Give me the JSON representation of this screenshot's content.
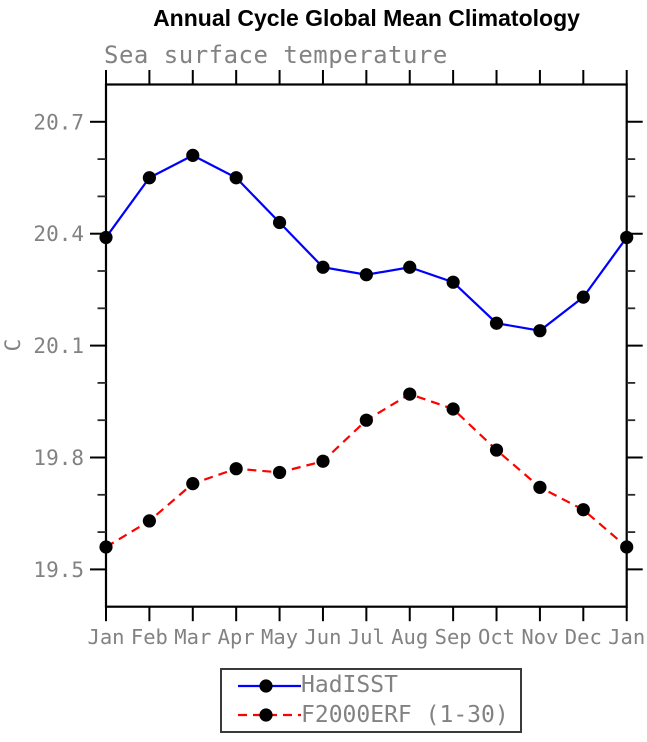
{
  "chart_data": {
    "type": "line",
    "title": "Annual Cycle Global Mean Climatology",
    "subtitle": "Sea surface temperature",
    "ylabel": "C",
    "xlabel": "",
    "categories": [
      "Jan",
      "Feb",
      "Mar",
      "Apr",
      "May",
      "Jun",
      "Jul",
      "Aug",
      "Sep",
      "Oct",
      "Nov",
      "Dec",
      "Jan"
    ],
    "series": [
      {
        "name": "HadISST",
        "color": "#0000ff",
        "line_style": "solid",
        "values": [
          20.39,
          20.55,
          20.61,
          20.55,
          20.43,
          20.31,
          20.29,
          20.31,
          20.27,
          20.16,
          20.14,
          20.23,
          20.39
        ]
      },
      {
        "name": "F2000ERF (1-30)",
        "color": "#ff0000",
        "line_style": "dashed",
        "values": [
          19.56,
          19.63,
          19.73,
          19.77,
          19.76,
          19.79,
          19.9,
          19.97,
          19.93,
          19.82,
          19.72,
          19.66,
          19.56
        ]
      }
    ],
    "ylim": [
      19.4,
      20.8
    ],
    "yticks_major": [
      19.5,
      19.8,
      20.1,
      20.4,
      20.7
    ],
    "ytick_labels": [
      "19.5",
      "19.8",
      "20.1",
      "20.4",
      "20.7"
    ],
    "ytick_minor_step": 0.1,
    "grid": false,
    "legend_position": "bottom-center",
    "marker": {
      "shape": "circle",
      "color": "#000000",
      "radius": 6.6
    },
    "colors": {
      "axis": "#000000",
      "tick_label_text": "#828282",
      "background": "#ffffff"
    }
  },
  "legend": {
    "items": [
      {
        "label": "HadISST",
        "line_style": "solid",
        "color": "#0000ff"
      },
      {
        "label": "F2000ERF (1-30)",
        "line_style": "dashed",
        "color": "#ff0000"
      }
    ]
  }
}
